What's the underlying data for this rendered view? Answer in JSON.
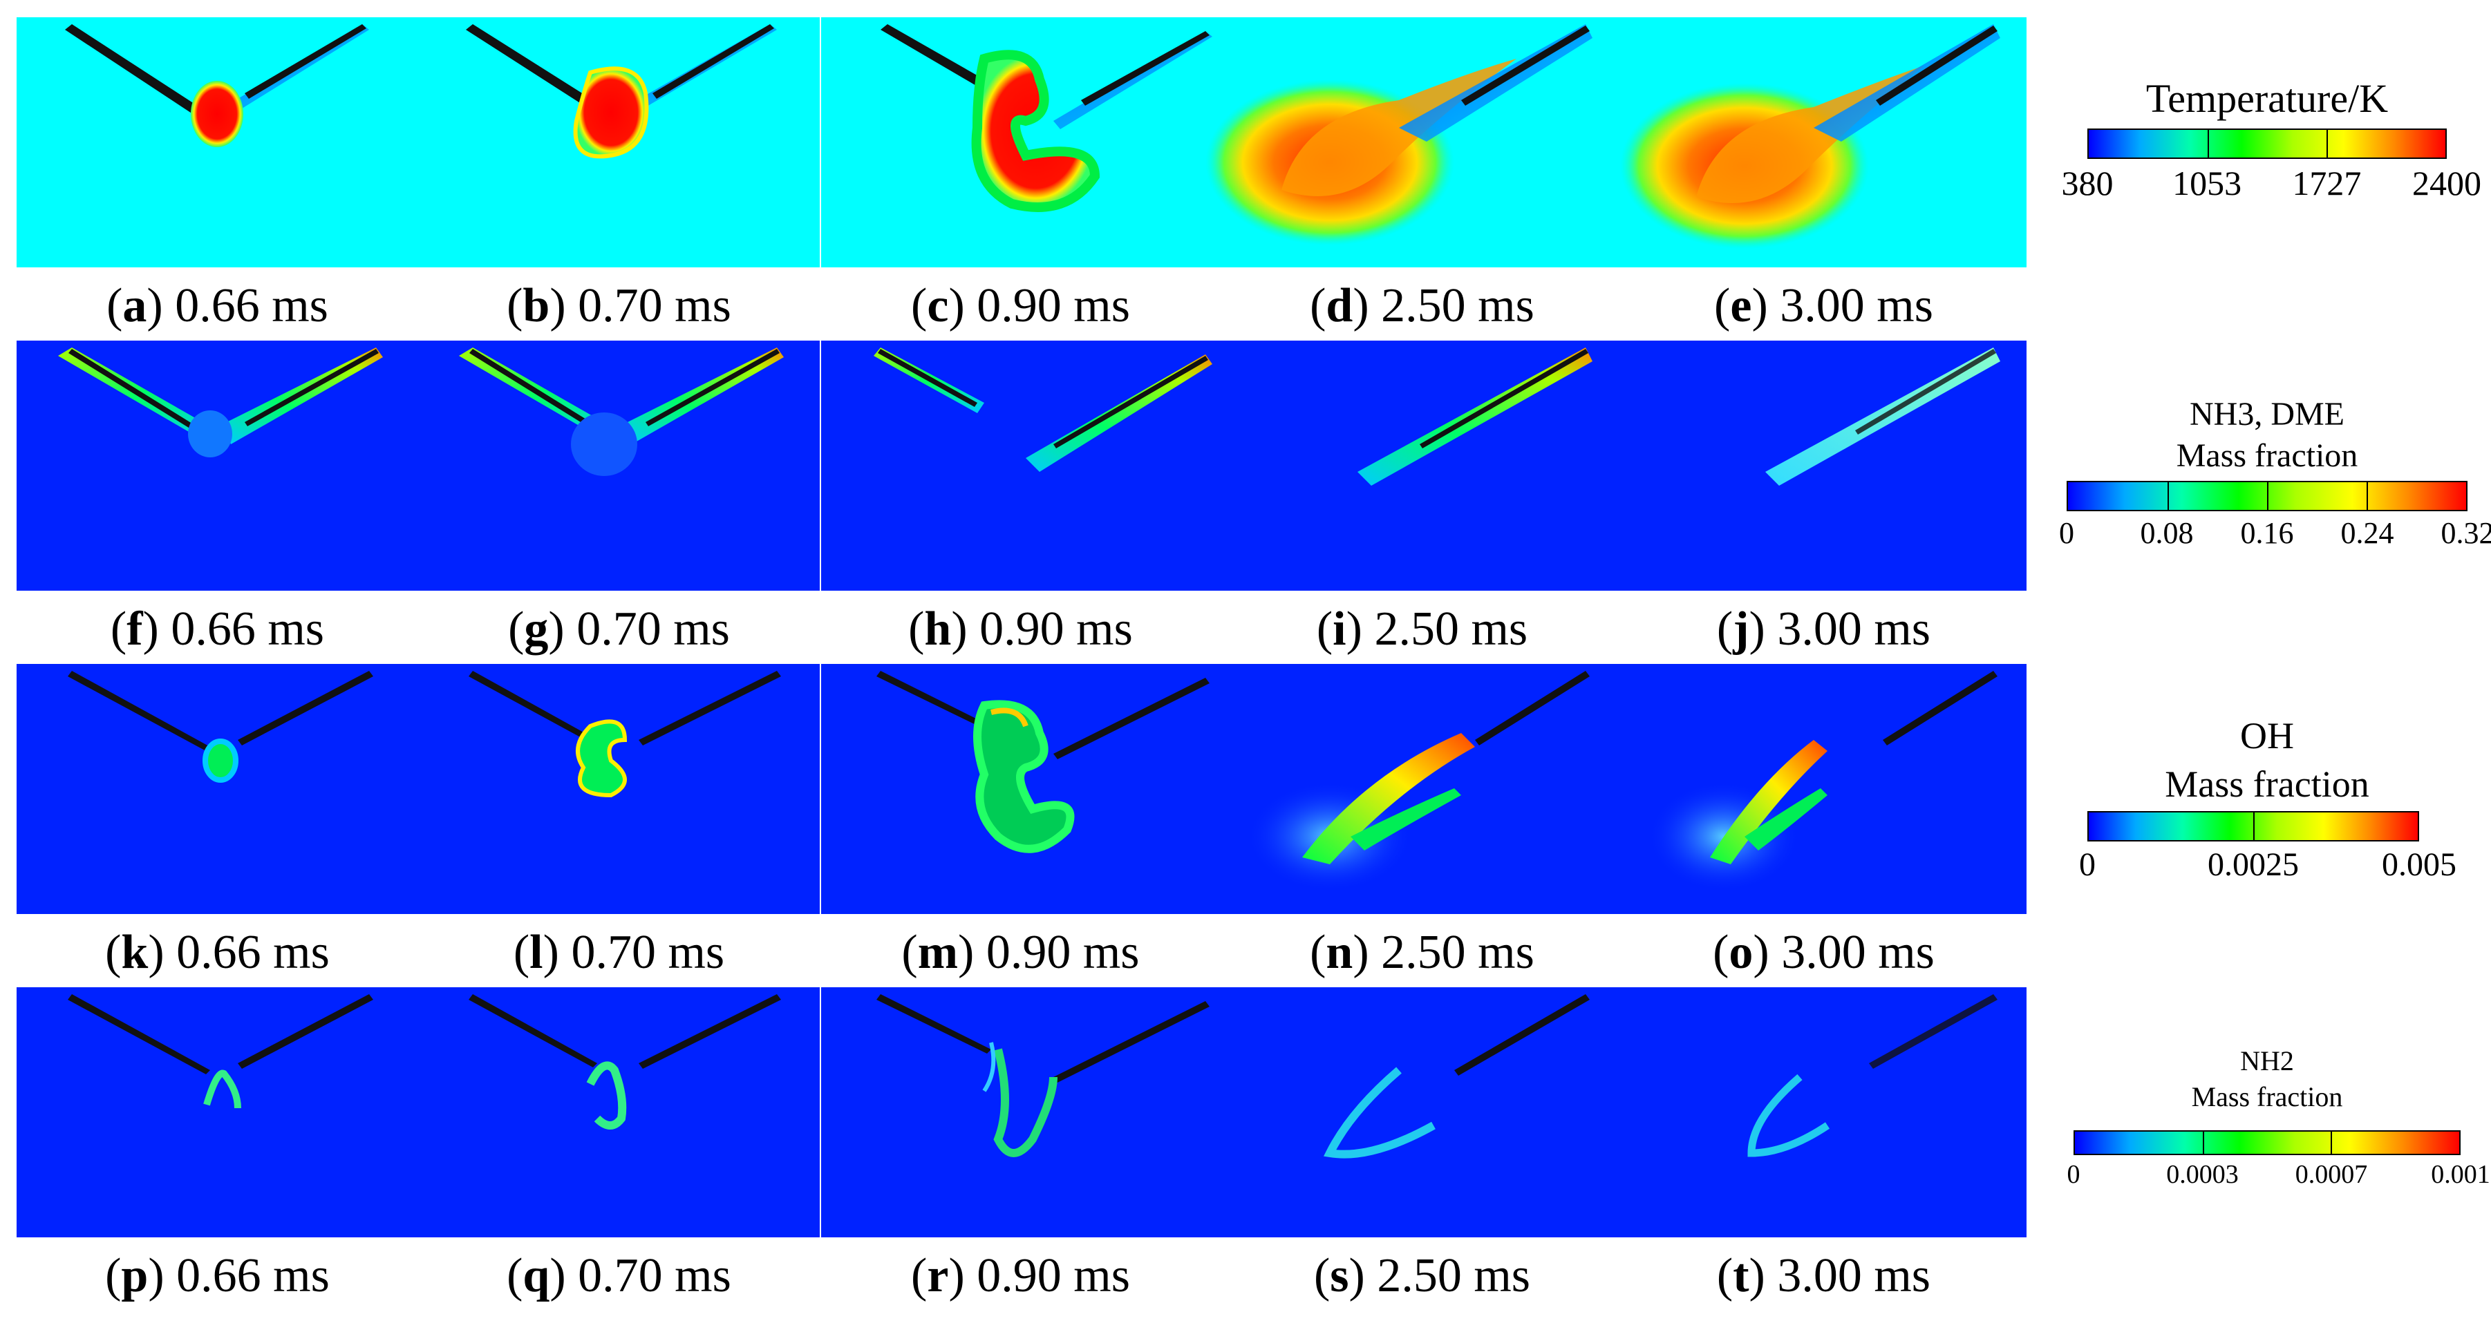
{
  "rows": [
    {
      "field": "Temperature",
      "background": "#00ffff",
      "captions": [
        {
          "letter": "a",
          "time": "0.66 ms"
        },
        {
          "letter": "b",
          "time": "0.70 ms"
        },
        {
          "letter": "c",
          "time": "0.90 ms"
        },
        {
          "letter": "d",
          "time": "2.50 ms"
        },
        {
          "letter": "e",
          "time": "3.00 ms"
        }
      ]
    },
    {
      "field": "NH3, DME mass fraction",
      "background": "#0022ff",
      "captions": [
        {
          "letter": "f",
          "time": "0.66 ms"
        },
        {
          "letter": "g",
          "time": "0.70 ms"
        },
        {
          "letter": "h",
          "time": "0.90 ms"
        },
        {
          "letter": "i",
          "time": "2.50 ms"
        },
        {
          "letter": "j",
          "time": "3.00 ms"
        }
      ]
    },
    {
      "field": "OH mass fraction",
      "background": "#0022ff",
      "captions": [
        {
          "letter": "k",
          "time": "0.66 ms"
        },
        {
          "letter": "l",
          "time": "0.70 ms"
        },
        {
          "letter": "m",
          "time": "0.90 ms"
        },
        {
          "letter": "n",
          "time": "2.50 ms"
        },
        {
          "letter": "o",
          "time": "3.00 ms"
        }
      ]
    },
    {
      "field": "NH2 mass fraction",
      "background": "#0022ff",
      "captions": [
        {
          "letter": "p",
          "time": "0.66 ms"
        },
        {
          "letter": "q",
          "time": "0.70 ms"
        },
        {
          "letter": "r",
          "time": "0.90 ms"
        },
        {
          "letter": "s",
          "time": "2.50 ms"
        },
        {
          "letter": "t",
          "time": "3.00 ms"
        }
      ]
    }
  ],
  "legends": [
    {
      "title_lines": [
        "Temperature/K"
      ],
      "ticks": [
        "380",
        "1053",
        "1727",
        "2400"
      ]
    },
    {
      "title_lines": [
        "NH3, DME",
        "Mass fraction"
      ],
      "ticks": [
        "0",
        "0.08",
        "0.16",
        "0.24",
        "0.32"
      ]
    },
    {
      "title_lines": [
        "OH",
        "Mass fraction"
      ],
      "ticks": [
        "0",
        "0.0025",
        "0.005"
      ]
    },
    {
      "title_lines": [
        "NH2",
        "Mass fraction"
      ],
      "ticks": [
        "0",
        "0.0003",
        "0.0007",
        "0.001"
      ]
    }
  ],
  "colormap": [
    "#0000ff",
    "#00aaff",
    "#00ffaa",
    "#00ff00",
    "#aaff00",
    "#ffff00",
    "#ff8800",
    "#ff0000"
  ]
}
